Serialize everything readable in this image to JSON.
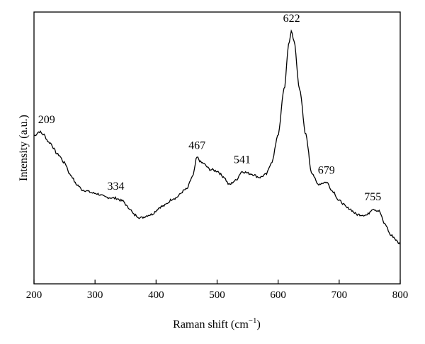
{
  "chart_data": {
    "type": "line",
    "xlabel": "Raman shift (cm",
    "xlabel_sup": "−1",
    "xlabel_suffix": ")",
    "ylabel": "Intensity (a.u.)",
    "xlim": [
      200,
      800
    ],
    "ylim": [
      0,
      100
    ],
    "xticks": [
      "200",
      "300",
      "400",
      "500",
      "600",
      "700",
      "800"
    ],
    "grid": false,
    "annotations": [
      {
        "text": "209",
        "x": 209,
        "y": 56.0
      },
      {
        "text": "334",
        "x": 334,
        "y": 31.5
      },
      {
        "text": "467",
        "x": 467,
        "y": 46.5
      },
      {
        "text": "541",
        "x": 541,
        "y": 41.3
      },
      {
        "text": "622",
        "x": 622,
        "y": 93.2
      },
      {
        "text": "679",
        "x": 679,
        "y": 37.4
      },
      {
        "text": "755",
        "x": 755,
        "y": 27.6
      }
    ],
    "series": [
      {
        "values": [
          [
            200,
            54.5
          ],
          [
            209,
            56.0
          ],
          [
            215,
            55.0
          ],
          [
            225,
            52.0
          ],
          [
            240,
            47.5
          ],
          [
            250,
            44.5
          ],
          [
            260,
            40.0
          ],
          [
            270,
            36.5
          ],
          [
            280,
            34.5
          ],
          [
            300,
            33.3
          ],
          [
            320,
            31.8
          ],
          [
            334,
            31.5
          ],
          [
            345,
            30.5
          ],
          [
            355,
            28.0
          ],
          [
            365,
            25.3
          ],
          [
            375,
            24.3
          ],
          [
            390,
            25.4
          ],
          [
            410,
            28.5
          ],
          [
            430,
            31.5
          ],
          [
            450,
            34.8
          ],
          [
            460,
            39.5
          ],
          [
            467,
            46.5
          ],
          [
            475,
            44.5
          ],
          [
            490,
            42.0
          ],
          [
            500,
            41.5
          ],
          [
            510,
            39.5
          ],
          [
            520,
            36.5
          ],
          [
            530,
            38.0
          ],
          [
            541,
            41.3
          ],
          [
            555,
            40.5
          ],
          [
            570,
            39.2
          ],
          [
            580,
            40.2
          ],
          [
            590,
            45.0
          ],
          [
            600,
            55.0
          ],
          [
            610,
            72.0
          ],
          [
            618,
            89.0
          ],
          [
            622,
            93.2
          ],
          [
            626,
            89.0
          ],
          [
            635,
            72.0
          ],
          [
            645,
            55.0
          ],
          [
            655,
            41.0
          ],
          [
            665,
            36.7
          ],
          [
            679,
            37.4
          ],
          [
            690,
            34.0
          ],
          [
            700,
            30.5
          ],
          [
            715,
            27.8
          ],
          [
            730,
            25.5
          ],
          [
            745,
            25.3
          ],
          [
            755,
            27.6
          ],
          [
            765,
            26.8
          ],
          [
            775,
            22.0
          ],
          [
            785,
            17.8
          ],
          [
            800,
            14.8
          ]
        ]
      }
    ]
  }
}
